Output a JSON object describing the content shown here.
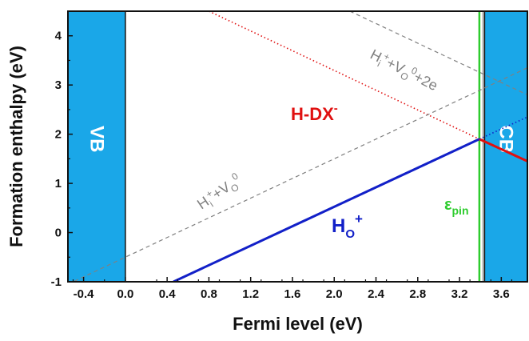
{
  "chart_data": {
    "type": "line",
    "xlabel": "Fermi level (eV)",
    "ylabel": "Formation enthalpy (eV)",
    "xlim": [
      -0.55,
      3.85
    ],
    "ylim": [
      -1,
      4.5
    ],
    "xticks": [
      "-0.4",
      "0.0",
      "0.4",
      "0.8",
      "1.2",
      "1.6",
      "2.0",
      "2.4",
      "2.8",
      "3.2",
      "3.6"
    ],
    "xtick_values": [
      -0.4,
      0.0,
      0.4,
      0.8,
      1.2,
      1.6,
      2.0,
      2.4,
      2.8,
      3.2,
      3.6
    ],
    "yticks": [
      "-1",
      "0",
      "1",
      "2",
      "3",
      "4"
    ],
    "ytick_values": [
      -1,
      0,
      1,
      2,
      3,
      4
    ],
    "grid": false,
    "colors": {
      "band": "#1aa7e8",
      "ho": "#1220c8",
      "hdx": "#e01010",
      "dashed": "#808080",
      "pin": "#2ecc2e"
    },
    "bands": [
      {
        "label": "VB",
        "x": [
          -0.55,
          0.0
        ]
      },
      {
        "label": "CB",
        "x": [
          3.44,
          3.85
        ]
      }
    ],
    "pinning_level": {
      "label": "ε",
      "sub": "pin",
      "x": 3.39
    },
    "series": [
      {
        "label_main": "H",
        "label_sub": "O",
        "label_sup": "+",
        "style": "solid",
        "color_key": "ho",
        "x": [
          0.46,
          3.39
        ],
        "y": [
          -1.0,
          1.9
        ]
      },
      {
        "label_main": "H-DX",
        "label_sup": "-",
        "style": "dotted",
        "color_key": "hdx",
        "x": [
          0.8,
          3.39
        ],
        "y": [
          4.5,
          1.9
        ]
      },
      {
        "style": "solid",
        "color_key": "hdx",
        "x": [
          3.39,
          3.85
        ],
        "y": [
          1.9,
          1.45
        ]
      },
      {
        "style": "dotted",
        "color_key": "ho",
        "x": [
          3.39,
          3.85
        ],
        "y": [
          1.9,
          2.35
        ]
      },
      {
        "label_parts": [
          "H",
          "i",
          "+",
          "+V",
          "O",
          "0"
        ],
        "style": "dashed",
        "color_key": "dashed",
        "x": [
          -0.55,
          3.85
        ],
        "y": [
          -1.05,
          3.35
        ]
      },
      {
        "label_parts": [
          "H",
          "i",
          "+",
          "+V",
          "O",
          "0",
          "+2e"
        ],
        "style": "dashed",
        "color_key": "dashed",
        "x": [
          2.15,
          3.85
        ],
        "y": [
          4.5,
          2.8
        ]
      }
    ]
  }
}
